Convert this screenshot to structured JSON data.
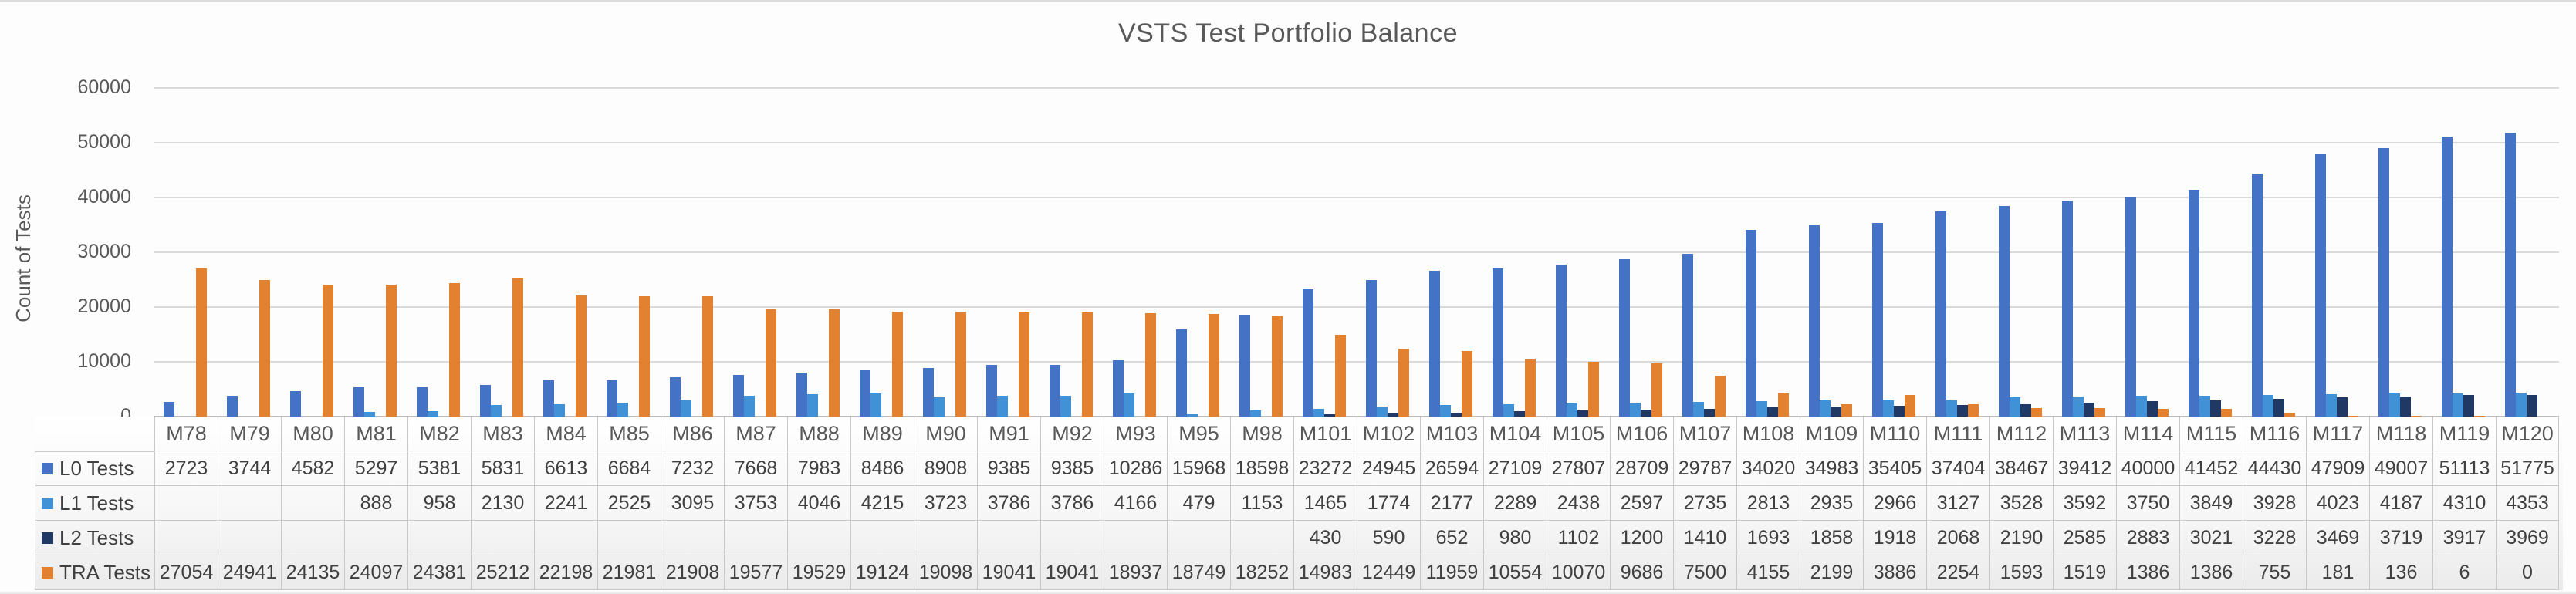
{
  "chart_data": {
    "type": "bar",
    "title": "VSTS Test Portfolio Balance",
    "ylabel": "Count of Tests",
    "xlabel": "",
    "ylim": [
      0,
      60000
    ],
    "ytick_interval": 10000,
    "yticks": [
      0,
      10000,
      20000,
      30000,
      40000,
      50000,
      60000
    ],
    "grid": true,
    "legend_position": "data-table-left",
    "text_color": "#595959",
    "gridline_color": "#dadada",
    "categories": [
      "M78",
      "M79",
      "M80",
      "M81",
      "M82",
      "M83",
      "M84",
      "M85",
      "M86",
      "M87",
      "M88",
      "M89",
      "M90",
      "M91",
      "M92",
      "M93",
      "M95",
      "M98",
      "M101",
      "M102",
      "M103",
      "M104",
      "M105",
      "M106",
      "M107",
      "M108",
      "M109",
      "M110",
      "M111",
      "M112",
      "M113",
      "M114",
      "M115",
      "M116",
      "M117",
      "M118",
      "M119",
      "M120"
    ],
    "series": [
      {
        "name": "L0 Tests",
        "color": "#4472c4",
        "values": [
          2723,
          3744,
          4582,
          5297,
          5381,
          5831,
          6613,
          6684,
          7232,
          7668,
          7983,
          8486,
          8908,
          9385,
          9385,
          10286,
          15968,
          18598,
          23272,
          24945,
          26594,
          27109,
          27807,
          28709,
          29787,
          34020,
          34983,
          35405,
          37404,
          38467,
          39412,
          40000,
          41452,
          44430,
          47909,
          49007,
          51113,
          51775
        ]
      },
      {
        "name": "L1 Tests",
        "color": "#4191d6",
        "values": [
          null,
          null,
          null,
          888,
          958,
          2130,
          2241,
          2525,
          3095,
          3753,
          4046,
          4215,
          3723,
          3786,
          3786,
          4166,
          479,
          1153,
          1465,
          1774,
          2177,
          2289,
          2438,
          2597,
          2735,
          2813,
          2935,
          2966,
          3127,
          3528,
          3592,
          3750,
          3849,
          3928,
          4023,
          4187,
          4310,
          4353
        ]
      },
      {
        "name": "L2 Tests",
        "color": "#1f3864",
        "values": [
          null,
          null,
          null,
          null,
          null,
          null,
          null,
          null,
          null,
          null,
          null,
          null,
          null,
          null,
          null,
          null,
          null,
          null,
          430,
          590,
          652,
          980,
          1102,
          1200,
          1410,
          1693,
          1858,
          1918,
          2068,
          2190,
          2585,
          2883,
          3021,
          3228,
          3469,
          3719,
          3917,
          3969
        ]
      },
      {
        "name": "TRA Tests",
        "color": "#e2812f",
        "values": [
          27054,
          24941,
          24135,
          24097,
          24381,
          25212,
          22198,
          21981,
          21908,
          19577,
          19529,
          19124,
          19098,
          19041,
          19041,
          18937,
          18749,
          18252,
          14983,
          12449,
          11959,
          10554,
          10070,
          9686,
          7500,
          4155,
          2199,
          3886,
          2254,
          1593,
          1519,
          1386,
          1386,
          755,
          181,
          136,
          6,
          0
        ]
      }
    ]
  }
}
